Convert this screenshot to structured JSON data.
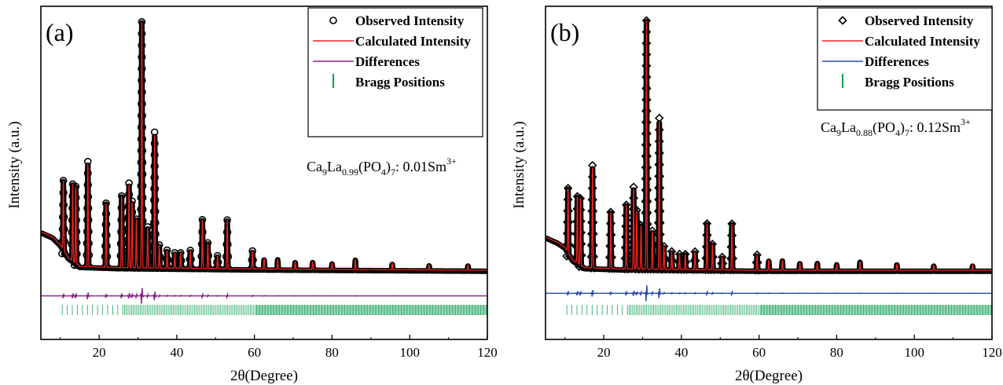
{
  "colors": {
    "observed": "#000000",
    "calculated": "#ee2222",
    "difference_a": "#8b1a8b",
    "difference_b": "#2a48a8",
    "bragg": "#1aa35a",
    "axis": "#000000"
  },
  "chart_data": [
    {
      "type": "line",
      "panel_label": "(a)",
      "title": "",
      "xlabel": "2θ(Degree)",
      "ylabel": "Intensity (a.u.)",
      "xlim": [
        5,
        120
      ],
      "ylim": [
        -0.25,
        1.05
      ],
      "x_ticks": [
        20,
        40,
        60,
        80,
        100,
        120
      ],
      "y_ticks_shown": false,
      "grid": false,
      "legend_position": "top-right",
      "legend": [
        {
          "label": "Observed Intensity",
          "marker": "circle"
        },
        {
          "label": "Calculated Intensity",
          "marker": "line"
        },
        {
          "label": "Differences",
          "marker": "line"
        },
        {
          "label": "Bragg Positions",
          "marker": "tick"
        }
      ],
      "composition": {
        "base": "Ca",
        "sub1": "9",
        "el2": "La",
        "sub2": "0.99",
        "el3": "(PO",
        "sub3": "4",
        "el4": ")",
        "sub4": "7",
        "tail": ": 0.01Sm",
        "sup": "3+"
      },
      "background": [
        [
          5,
          0.17
        ],
        [
          8,
          0.15
        ],
        [
          10,
          0.12
        ],
        [
          12,
          0.07
        ],
        [
          15,
          0.035
        ],
        [
          25,
          0.03
        ],
        [
          60,
          0.025
        ],
        [
          120,
          0.02
        ]
      ],
      "peaks": [
        [
          10.8,
          0.27
        ],
        [
          13.2,
          0.3
        ],
        [
          14.0,
          0.3
        ],
        [
          17.1,
          0.41
        ],
        [
          21.8,
          0.25
        ],
        [
          25.8,
          0.28
        ],
        [
          27.7,
          0.33
        ],
        [
          28.5,
          0.26
        ],
        [
          29.6,
          0.19
        ],
        [
          31.0,
          0.96
        ],
        [
          32.5,
          0.16
        ],
        [
          34.3,
          0.53
        ],
        [
          35.5,
          0.09
        ],
        [
          37.5,
          0.07
        ],
        [
          39.5,
          0.06
        ],
        [
          41.0,
          0.06
        ],
        [
          43.5,
          0.07
        ],
        [
          46.6,
          0.19
        ],
        [
          48.0,
          0.1
        ],
        [
          50.5,
          0.05
        ],
        [
          53.0,
          0.19
        ],
        [
          59.5,
          0.07
        ],
        [
          62.5,
          0.04
        ],
        [
          66.0,
          0.04
        ],
        [
          70.5,
          0.03
        ],
        [
          75.0,
          0.03
        ],
        [
          80.0,
          0.025
        ],
        [
          86.0,
          0.04
        ],
        [
          95.5,
          0.025
        ],
        [
          105.0,
          0.02
        ],
        [
          115.0,
          0.02
        ]
      ],
      "difference_offset": -0.08
    },
    {
      "type": "line",
      "panel_label": "(b)",
      "title": "",
      "xlabel": "2θ(Degree)",
      "ylabel": "Intensity (a.u.)",
      "xlim": [
        5,
        120
      ],
      "ylim": [
        -0.25,
        1.05
      ],
      "x_ticks": [
        20,
        40,
        60,
        80,
        100,
        120
      ],
      "y_ticks_shown": false,
      "grid": false,
      "legend_position": "top-right",
      "legend": [
        {
          "label": "Observed Intensity",
          "marker": "diamond"
        },
        {
          "label": "Calculated Intensity",
          "marker": "line"
        },
        {
          "label": "Differences",
          "marker": "line"
        },
        {
          "label": "Bragg Positions",
          "marker": "tick"
        }
      ],
      "composition": {
        "base": "Ca",
        "sub1": "9",
        "el2": "La",
        "sub2": "0.88",
        "el3": "(PO",
        "sub3": "4",
        "el4": ")",
        "sub4": "7",
        "tail": ": 0.12Sm",
        "sup": "3+"
      },
      "background": [
        [
          5,
          0.15
        ],
        [
          8,
          0.13
        ],
        [
          10,
          0.11
        ],
        [
          12,
          0.06
        ],
        [
          15,
          0.03
        ],
        [
          25,
          0.025
        ],
        [
          60,
          0.02
        ],
        [
          120,
          0.02
        ]
      ],
      "peaks": [
        [
          10.8,
          0.25
        ],
        [
          13.2,
          0.26
        ],
        [
          14.0,
          0.26
        ],
        [
          17.1,
          0.4
        ],
        [
          21.8,
          0.22
        ],
        [
          25.8,
          0.25
        ],
        [
          27.7,
          0.32
        ],
        [
          28.5,
          0.23
        ],
        [
          29.6,
          0.17
        ],
        [
          31.0,
          0.97
        ],
        [
          32.5,
          0.15
        ],
        [
          34.3,
          0.59
        ],
        [
          35.5,
          0.09
        ],
        [
          37.5,
          0.07
        ],
        [
          39.5,
          0.06
        ],
        [
          41.0,
          0.06
        ],
        [
          43.5,
          0.07
        ],
        [
          46.6,
          0.18
        ],
        [
          48.0,
          0.1
        ],
        [
          50.5,
          0.05
        ],
        [
          53.0,
          0.18
        ],
        [
          59.5,
          0.06
        ],
        [
          62.5,
          0.04
        ],
        [
          66.0,
          0.04
        ],
        [
          70.5,
          0.03
        ],
        [
          75.0,
          0.03
        ],
        [
          80.0,
          0.025
        ],
        [
          86.0,
          0.035
        ],
        [
          95.5,
          0.025
        ],
        [
          105.0,
          0.02
        ],
        [
          115.0,
          0.02
        ]
      ],
      "difference_offset": -0.07
    }
  ]
}
